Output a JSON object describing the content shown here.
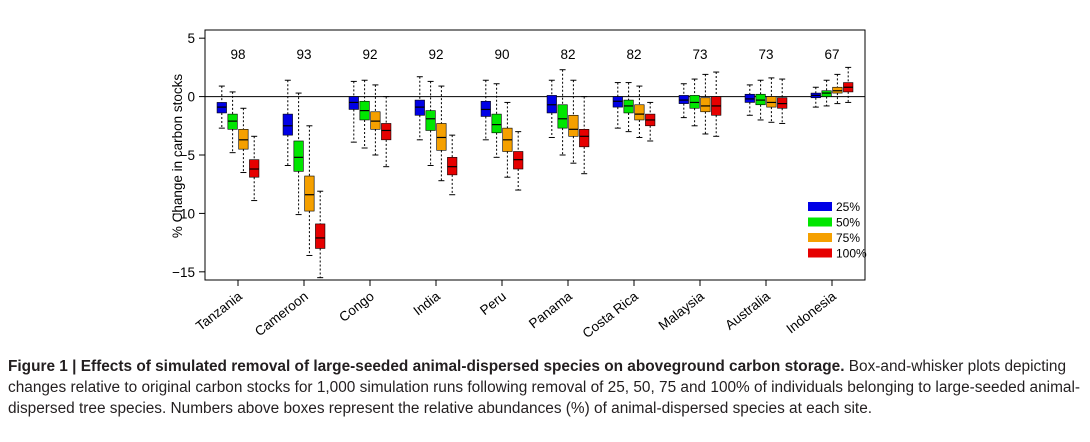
{
  "chart_data": {
    "type": "box",
    "ylabel": "% Change in carbon stocks",
    "ylim": [
      -15.7,
      5.7
    ],
    "yticks": [
      5,
      0,
      -5,
      -10,
      -15
    ],
    "categories": [
      "Tanzania",
      "Cameroon",
      "Congo",
      "India",
      "Peru",
      "Panama",
      "Costa Rica",
      "Malaysia",
      "Australia",
      "Indonesia"
    ],
    "abundances": [
      "98",
      "93",
      "92",
      "92",
      "90",
      "82",
      "82",
      "73",
      "73",
      "67"
    ],
    "legend_position": "right",
    "series": [
      {
        "name": "25%",
        "color": "#0000e6",
        "boxes": [
          {
            "wl": -2.7,
            "q1": -1.4,
            "med": -0.9,
            "q3": -0.5,
            "wh": 0.9
          },
          {
            "wl": -5.9,
            "q1": -3.3,
            "med": -2.5,
            "q3": -1.5,
            "wh": 1.4
          },
          {
            "wl": -3.9,
            "q1": -1.1,
            "med": -0.5,
            "q3": -0.0,
            "wh": 1.3
          },
          {
            "wl": -3.7,
            "q1": -1.6,
            "med": -0.9,
            "q3": -0.3,
            "wh": 1.7
          },
          {
            "wl": -3.7,
            "q1": -1.7,
            "med": -1.1,
            "q3": -0.4,
            "wh": 1.4
          },
          {
            "wl": -3.5,
            "q1": -1.4,
            "med": -0.7,
            "q3": 0.1,
            "wh": 1.4
          },
          {
            "wl": -2.7,
            "q1": -0.9,
            "med": -0.4,
            "q3": 0.0,
            "wh": 1.2
          },
          {
            "wl": -1.8,
            "q1": -0.6,
            "med": -0.3,
            "q3": 0.1,
            "wh": 1.1
          },
          {
            "wl": -1.6,
            "q1": -0.5,
            "med": -0.2,
            "q3": 0.2,
            "wh": 1.0
          },
          {
            "wl": -0.9,
            "q1": -0.1,
            "med": 0.1,
            "q3": 0.3,
            "wh": 0.8
          }
        ]
      },
      {
        "name": "50%",
        "color": "#00e600",
        "boxes": [
          {
            "wl": -4.8,
            "q1": -2.8,
            "med": -2.1,
            "q3": -1.5,
            "wh": 0.4
          },
          {
            "wl": -10.1,
            "q1": -6.4,
            "med": -5.2,
            "q3": -3.8,
            "wh": 0.3
          },
          {
            "wl": -4.4,
            "q1": -2.0,
            "med": -1.2,
            "q3": -0.4,
            "wh": 1.4
          },
          {
            "wl": -5.9,
            "q1": -2.9,
            "med": -1.9,
            "q3": -1.2,
            "wh": 1.3
          },
          {
            "wl": -5.2,
            "q1": -3.1,
            "med": -2.4,
            "q3": -1.5,
            "wh": 1.1
          },
          {
            "wl": -5.0,
            "q1": -2.7,
            "med": -1.9,
            "q3": -0.7,
            "wh": 2.3
          },
          {
            "wl": -3.0,
            "q1": -1.4,
            "med": -0.8,
            "q3": -0.3,
            "wh": 1.2
          },
          {
            "wl": -2.5,
            "q1": -1.0,
            "med": -0.5,
            "q3": 0.1,
            "wh": 1.5
          },
          {
            "wl": -2.0,
            "q1": -0.7,
            "med": -0.3,
            "q3": 0.2,
            "wh": 1.4
          },
          {
            "wl": -0.8,
            "q1": 0.0,
            "med": 0.3,
            "q3": 0.5,
            "wh": 1.4
          }
        ]
      },
      {
        "name": "75%",
        "color": "#f5a000",
        "boxes": [
          {
            "wl": -6.5,
            "q1": -4.5,
            "med": -3.7,
            "q3": -2.8,
            "wh": -1.0
          },
          {
            "wl": -13.6,
            "q1": -9.8,
            "med": -8.4,
            "q3": -6.8,
            "wh": -2.5
          },
          {
            "wl": -5.0,
            "q1": -2.8,
            "med": -2.1,
            "q3": -1.3,
            "wh": 1.0
          },
          {
            "wl": -7.2,
            "q1": -4.6,
            "med": -3.5,
            "q3": -2.3,
            "wh": 0.9
          },
          {
            "wl": -6.9,
            "q1": -4.7,
            "med": -3.7,
            "q3": -2.7,
            "wh": -0.5
          },
          {
            "wl": -5.7,
            "q1": -3.4,
            "med": -2.8,
            "q3": -1.6,
            "wh": 1.4
          },
          {
            "wl": -3.5,
            "q1": -2.0,
            "med": -1.5,
            "q3": -0.7,
            "wh": 0.9
          },
          {
            "wl": -3.2,
            "q1": -1.3,
            "med": -0.8,
            "q3": -0.1,
            "wh": 1.9
          },
          {
            "wl": -2.2,
            "q1": -0.9,
            "med": -0.5,
            "q3": 0.0,
            "wh": 1.6
          },
          {
            "wl": -0.6,
            "q1": 0.3,
            "med": 0.5,
            "q3": 0.8,
            "wh": 1.9
          }
        ]
      },
      {
        "name": "100%",
        "color": "#e60000",
        "boxes": [
          {
            "wl": -8.9,
            "q1": -6.9,
            "med": -6.2,
            "q3": -5.4,
            "wh": -3.4
          },
          {
            "wl": -15.5,
            "q1": -13.0,
            "med": -12.1,
            "q3": -10.9,
            "wh": -8.1
          },
          {
            "wl": -6.0,
            "q1": -3.7,
            "med": -2.9,
            "q3": -2.3,
            "wh": 0.0
          },
          {
            "wl": -8.4,
            "q1": -6.7,
            "med": -6.0,
            "q3": -5.2,
            "wh": -3.3
          },
          {
            "wl": -8.0,
            "q1": -6.2,
            "med": -5.4,
            "q3": -4.7,
            "wh": -3.0
          },
          {
            "wl": -6.6,
            "q1": -4.3,
            "med": -3.4,
            "q3": -2.8,
            "wh": 0.0
          },
          {
            "wl": -3.8,
            "q1": -2.5,
            "med": -2.0,
            "q3": -1.5,
            "wh": -0.5
          },
          {
            "wl": -3.4,
            "q1": -1.6,
            "med": -0.8,
            "q3": 0.0,
            "wh": 2.1
          },
          {
            "wl": -2.3,
            "q1": -1.0,
            "med": -0.6,
            "q3": -0.1,
            "wh": 1.5
          },
          {
            "wl": -0.5,
            "q1": 0.4,
            "med": 0.8,
            "q3": 1.2,
            "wh": 2.5
          }
        ]
      }
    ]
  },
  "caption": {
    "label": "Figure 1 | Effects of simulated removal of large-seeded animal-dispersed species on aboveground carbon storage.",
    "text": " Box-and-whisker plots depicting changes relative to original carbon stocks for 1,000 simulation runs following removal of 25, 50, 75 and 100% of individuals belonging to large-seeded animal-dispersed tree species. Numbers above boxes represent the relative abundances (%) of animal-dispersed species at each site."
  }
}
